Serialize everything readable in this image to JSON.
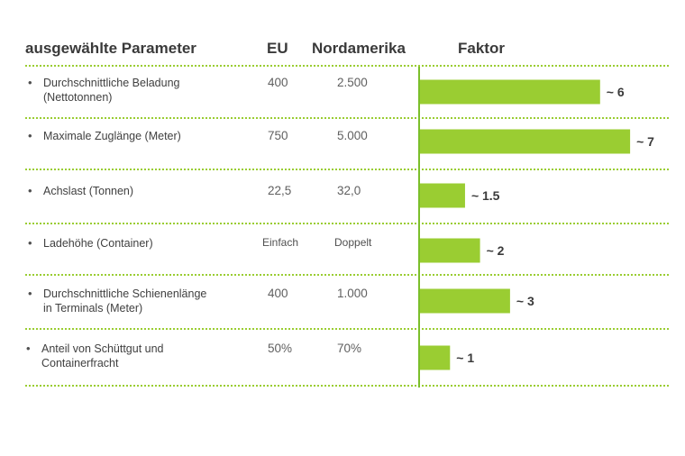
{
  "header": {
    "param": "ausgewählte Parameter",
    "eu": "EU",
    "na": "Nordamerika",
    "factor": "Faktor"
  },
  "chart_data": {
    "type": "bar",
    "orientation": "horizontal",
    "categories": [
      "Durchschnittliche Beladung\n(Nettotonnen)",
      "Maximale Zuglänge (Meter)",
      "Achslast (Tonnen)",
      "Ladehöhe (Container)",
      "Durchschnittliche Schienenlänge\nin Terminals (Meter)",
      "Anteil von Schüttgut und\nContainerfracht"
    ],
    "values": [
      6,
      7,
      1.5,
      2,
      3,
      1
    ],
    "value_labels": [
      "~ 6",
      "~ 7",
      "~ 1.5",
      "~ 2",
      "~ 3",
      "~ 1"
    ],
    "color": "#9acd32"
  },
  "rows": [
    {
      "bullet": "•",
      "eu": "400",
      "na": "2.500"
    },
    {
      "bullet": "•",
      "eu": "750",
      "na": "5.000"
    },
    {
      "bullet": "•",
      "eu": "22,5",
      "na": "32,0"
    },
    {
      "bullet": "•",
      "eu": "Einfach",
      "na": "Doppelt"
    },
    {
      "bullet": "•",
      "eu": "400",
      "na": "1.000"
    },
    {
      "bullet": "•",
      "eu": "50%",
      "na": "70%"
    }
  ]
}
